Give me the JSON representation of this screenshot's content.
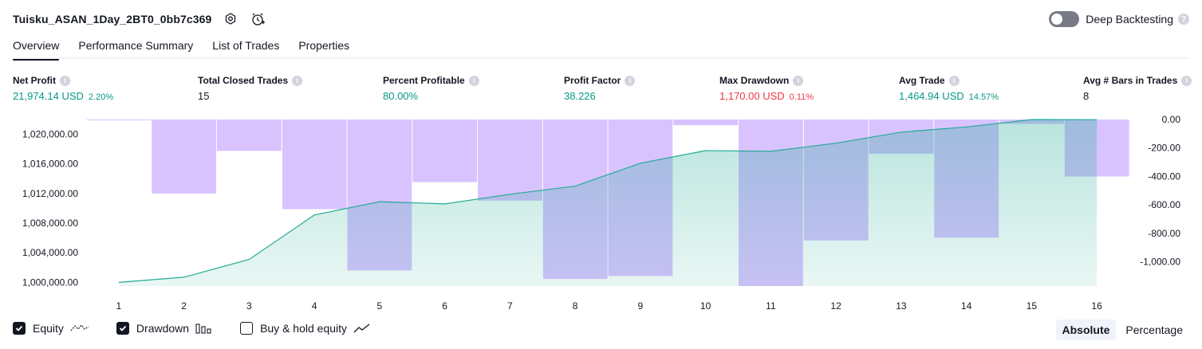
{
  "header": {
    "strategy_name": "Tuisku_ASAN_1Day_2BT0_0bb7c369",
    "deep_backtesting_label": "Deep Backtesting",
    "deep_backtesting_on": false,
    "icons": [
      "settings-icon",
      "alert-clock-icon",
      "help-icon"
    ]
  },
  "tabs": [
    {
      "label": "Overview",
      "active": true
    },
    {
      "label": "Performance Summary",
      "active": false
    },
    {
      "label": "List of Trades",
      "active": false
    },
    {
      "label": "Properties",
      "active": false
    }
  ],
  "metrics": [
    {
      "label": "Net Profit",
      "value": "21,974.14 USD",
      "sub": "2.20%",
      "color": "green"
    },
    {
      "label": "Total Closed Trades",
      "value": "15",
      "sub": "",
      "color": "dark"
    },
    {
      "label": "Percent Profitable",
      "value": "80.00%",
      "sub": "",
      "color": "green"
    },
    {
      "label": "Profit Factor",
      "value": "38.226",
      "sub": "",
      "color": "green"
    },
    {
      "label": "Max Drawdown",
      "value": "1,170.00 USD",
      "sub": "0.11%",
      "color": "red"
    },
    {
      "label": "Avg Trade",
      "value": "1,464.94 USD",
      "sub": "14.57%",
      "color": "green"
    },
    {
      "label": "Avg # Bars in Trades",
      "value": "8",
      "sub": "",
      "color": "dark"
    }
  ],
  "chart_data": {
    "type": "line",
    "x": [
      1,
      2,
      3,
      4,
      5,
      6,
      7,
      8,
      9,
      10,
      11,
      12,
      13,
      14,
      15,
      16
    ],
    "series": [
      {
        "name": "Equity",
        "type": "area",
        "axis": "left",
        "values": [
          1000000,
          1000700,
          1003100,
          1009100,
          1010900,
          1010600,
          1011900,
          1013000,
          1016100,
          1017800,
          1017700,
          1018800,
          1020300,
          1021000,
          1022000,
          1021974
        ]
      },
      {
        "name": "Drawdown",
        "type": "bar",
        "axis": "right",
        "values": [
          0,
          -520,
          -220,
          -630,
          -1060,
          -440,
          -570,
          -1120,
          -1100,
          -40,
          -1170,
          -850,
          -240,
          -830,
          -30,
          -400
        ]
      }
    ],
    "left_axis": {
      "min": 999500,
      "max": 1022000,
      "ticks": [
        1000000,
        1004000,
        1008000,
        1012000,
        1016000,
        1020000
      ],
      "tick_labels": [
        "1,000,000.00",
        "1,004,000.00",
        "1,008,000.00",
        "1,012,000.00",
        "1,016,000.00",
        "1,020,000.00"
      ]
    },
    "right_axis": {
      "min": -1170,
      "max": 0,
      "ticks": [
        0,
        -200,
        -400,
        -600,
        -800,
        -1000
      ],
      "tick_labels": [
        "0.00",
        "-200.00",
        "-400.00",
        "-600.00",
        "-800.00",
        "-1,000.00"
      ]
    },
    "x_tick_labels": [
      "1",
      "2",
      "3",
      "4",
      "5",
      "6",
      "7",
      "8",
      "9",
      "10",
      "11",
      "12",
      "13",
      "14",
      "15",
      "16"
    ],
    "colors": {
      "equity_line": "#22ab94",
      "equity_fill": "#22ab94",
      "drawdown": "#b388ff"
    }
  },
  "legend": {
    "items": [
      {
        "label": "Equity",
        "checked": true,
        "icon": "equity-line-icon"
      },
      {
        "label": "Drawdown",
        "checked": true,
        "icon": "drawdown-bars-icon"
      },
      {
        "label": "Buy & hold equity",
        "checked": false,
        "icon": "buyhold-line-icon"
      }
    ],
    "mode_options": [
      {
        "label": "Absolute",
        "active": true
      },
      {
        "label": "Percentage",
        "active": false
      }
    ]
  }
}
